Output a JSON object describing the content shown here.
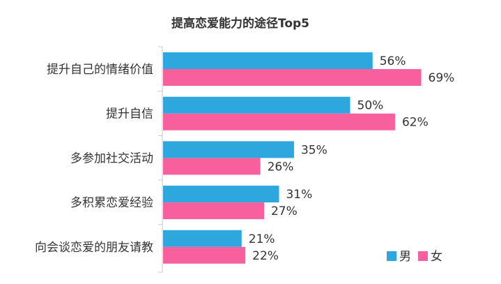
{
  "chart_data": {
    "type": "bar",
    "orientation": "horizontal",
    "title": "提高恋爱能力的途径Top5",
    "categories": [
      "提升自己的情绪价值",
      "提升自信",
      "多参加社交活动",
      "多积累恋爱经验",
      "向会谈恋爱的朋友请教"
    ],
    "series": [
      {
        "name": "男",
        "color": "#2EA7DF",
        "values": [
          56,
          50,
          35,
          31,
          21
        ],
        "labels": [
          "56%",
          "50%",
          "35%",
          "31%",
          "21%"
        ]
      },
      {
        "name": "女",
        "color": "#F7609C",
        "values": [
          69,
          62,
          26,
          27,
          22
        ],
        "labels": [
          "69%",
          "62%",
          "26%",
          "27%",
          "22%"
        ]
      }
    ],
    "unit": "%",
    "xlim": [
      0,
      75
    ],
    "grid": false,
    "legend_position": "bottom-right"
  }
}
